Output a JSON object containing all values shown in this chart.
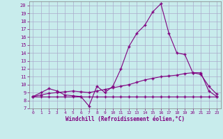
{
  "xlabel": "Windchill (Refroidissement éolien,°C)",
  "xlim": [
    -0.5,
    23.5
  ],
  "ylim": [
    7,
    20.5
  ],
  "xticks": [
    0,
    1,
    2,
    3,
    4,
    5,
    6,
    7,
    8,
    9,
    10,
    11,
    12,
    13,
    14,
    15,
    16,
    17,
    18,
    19,
    20,
    21,
    22,
    23
  ],
  "yticks": [
    7,
    8,
    9,
    10,
    11,
    12,
    13,
    14,
    15,
    16,
    17,
    18,
    19,
    20
  ],
  "background_color": "#c8ecec",
  "grid_color": "#aaaacc",
  "line_color": "#800080",
  "line1_y": [
    8.5,
    9.0,
    9.5,
    9.2,
    8.7,
    8.6,
    8.5,
    7.3,
    9.8,
    9.0,
    9.8,
    12.0,
    14.8,
    16.5,
    17.5,
    19.2,
    20.2,
    16.5,
    14.0,
    13.8,
    11.5,
    11.5,
    9.2,
    8.5
  ],
  "line2_y": [
    8.5,
    8.7,
    8.9,
    9.0,
    9.1,
    9.2,
    9.1,
    9.0,
    9.2,
    9.4,
    9.6,
    9.8,
    10.0,
    10.3,
    10.6,
    10.8,
    11.0,
    11.1,
    11.2,
    11.4,
    11.5,
    11.3,
    9.8,
    8.8
  ],
  "line3_y": [
    8.5,
    8.5,
    8.5,
    8.5,
    8.5,
    8.5,
    8.5,
    8.5,
    8.5,
    8.5,
    8.5,
    8.5,
    8.5,
    8.5,
    8.5,
    8.5,
    8.5,
    8.5,
    8.5,
    8.5,
    8.5,
    8.5,
    8.5,
    8.5
  ]
}
